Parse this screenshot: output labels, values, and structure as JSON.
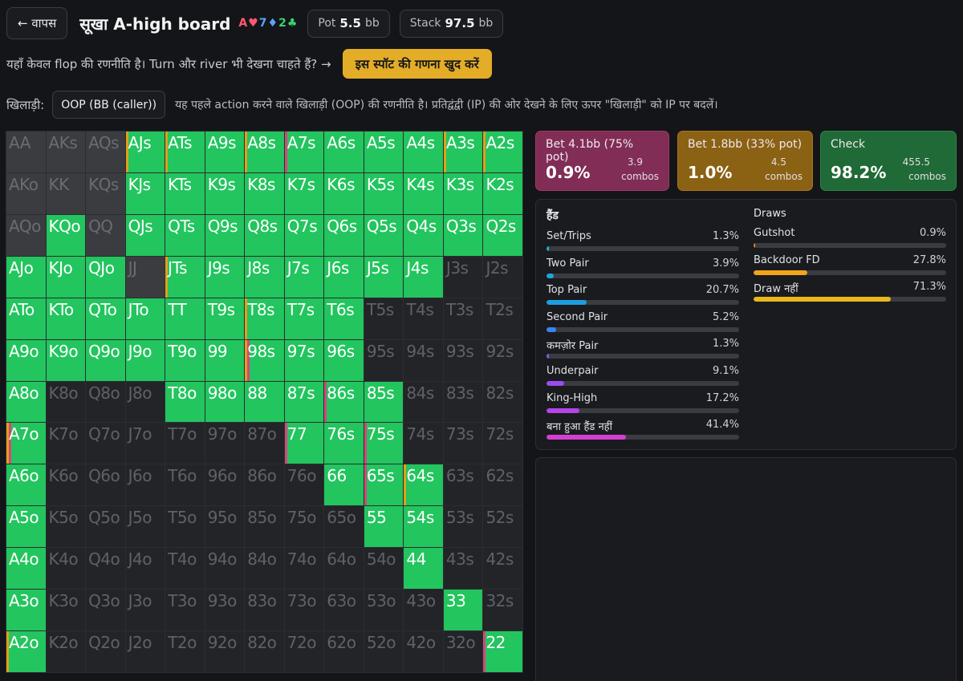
{
  "header": {
    "back_label": "← वापस",
    "title": "सूखा A-high board",
    "board_cards": [
      {
        "text": "A♥",
        "color": "#ff5a72"
      },
      {
        "text": "7♦",
        "color": "#5aa2ff"
      },
      {
        "text": "2♣",
        "color": "#39d16f"
      }
    ],
    "pot_label": "Pot",
    "pot_value": "5.5",
    "pot_unit": "bb",
    "stack_label": "Stack",
    "stack_value": "97.5",
    "stack_unit": "bb"
  },
  "notice": {
    "text": "यहाँ केवल flop की रणनीति है। Turn और river भी देखना चाहते हैं? →",
    "compute_button": "इस स्पॉट की गणना खुद करें"
  },
  "player": {
    "label": "खिलाड़ी:",
    "selected": "OOP (BB (caller))",
    "note": "यह पहले action करने वाले खिलाड़ी (OOP) की रणनीति है। प्रतिद्वंद्वी (IP) की ओर देखने के लिए ऊपर \"खिलाड़ी\" को IP पर बदलें।"
  },
  "colors": {
    "check": "#22c55e",
    "bet_small": "#e0a01a",
    "bet_large": "#d4467c"
  },
  "hand_grid": {
    "ranks": [
      "A",
      "K",
      "Q",
      "J",
      "T",
      "9",
      "8",
      "7",
      "6",
      "5",
      "4",
      "3",
      "2"
    ],
    "rows": [
      [
        "AA",
        "AKs",
        "AQs",
        "AJs",
        "ATs",
        "A9s",
        "A8s",
        "A7s",
        "A6s",
        "A5s",
        "A4s",
        "A3s",
        "A2s"
      ],
      [
        "AKo",
        "KK",
        "KQs",
        "KJs",
        "KTs",
        "K9s",
        "K8s",
        "K7s",
        "K6s",
        "K5s",
        "K4s",
        "K3s",
        "K2s"
      ],
      [
        "AQo",
        "KQo",
        "QQ",
        "QJs",
        "QTs",
        "Q9s",
        "Q8s",
        "Q7s",
        "Q6s",
        "Q5s",
        "Q4s",
        "Q3s",
        "Q2s"
      ],
      [
        "AJo",
        "KJo",
        "QJo",
        "JJ",
        "JTs",
        "J9s",
        "J8s",
        "J7s",
        "J6s",
        "J5s",
        "J4s",
        "J3s",
        "J2s"
      ],
      [
        "ATo",
        "KTo",
        "QTo",
        "JTo",
        "TT",
        "T9s",
        "T8s",
        "T7s",
        "T6s",
        "T5s",
        "T4s",
        "T3s",
        "T2s"
      ],
      [
        "A9o",
        "K9o",
        "Q9o",
        "J9o",
        "T9o",
        "99",
        "98s",
        "97s",
        "96s",
        "95s",
        "94s",
        "93s",
        "92s"
      ],
      [
        "A8o",
        "K8o",
        "Q8o",
        "J8o",
        "T8o",
        "98o",
        "88",
        "87s",
        "86s",
        "85s",
        "84s",
        "83s",
        "82s"
      ],
      [
        "A7o",
        "K7o",
        "Q7o",
        "J7o",
        "T7o",
        "97o",
        "87o",
        "77",
        "76s",
        "75s",
        "74s",
        "73s",
        "72s"
      ],
      [
        "A6o",
        "K6o",
        "Q6o",
        "J6o",
        "T6o",
        "96o",
        "86o",
        "76o",
        "66",
        "65s",
        "64s",
        "63s",
        "62s"
      ],
      [
        "A5o",
        "K5o",
        "Q5o",
        "J5o",
        "T5o",
        "95o",
        "85o",
        "75o",
        "65o",
        "55",
        "54s",
        "53s",
        "52s"
      ],
      [
        "A4o",
        "K4o",
        "Q4o",
        "J4o",
        "T4o",
        "94o",
        "84o",
        "74o",
        "64o",
        "54o",
        "44",
        "43s",
        "42s"
      ],
      [
        "A3o",
        "K3o",
        "Q3o",
        "J3o",
        "T3o",
        "93o",
        "83o",
        "73o",
        "63o",
        "53o",
        "43o",
        "33",
        "32s"
      ],
      [
        "A2o",
        "K2o",
        "Q2o",
        "J2o",
        "T2o",
        "92o",
        "82o",
        "72o",
        "62o",
        "52o",
        "42o",
        "32o",
        "22"
      ]
    ],
    "played": [
      [
        "AJs",
        0.06,
        0.94,
        0
      ],
      [
        "ATs",
        0.03,
        0.97,
        0
      ],
      [
        "A9s",
        0,
        1,
        0
      ],
      [
        "A8s",
        0.03,
        0.97,
        0
      ],
      [
        "A7s",
        0,
        0.94,
        0.06
      ],
      [
        "A6s",
        0,
        1,
        0
      ],
      [
        "A5s",
        0,
        1,
        0
      ],
      [
        "A4s",
        0,
        1,
        0
      ],
      [
        "A3s",
        0.03,
        0.97,
        0
      ],
      [
        "A2s",
        0.06,
        0.94,
        0
      ],
      [
        "KJs",
        0,
        1,
        0
      ],
      [
        "KTs",
        0,
        1,
        0
      ],
      [
        "K9s",
        0,
        1,
        0
      ],
      [
        "K8s",
        0,
        1,
        0
      ],
      [
        "K7s",
        0,
        1,
        0
      ],
      [
        "K6s",
        0,
        1,
        0
      ],
      [
        "K5s",
        0,
        1,
        0
      ],
      [
        "K4s",
        0,
        1,
        0
      ],
      [
        "K3s",
        0,
        1,
        0
      ],
      [
        "K2s",
        0,
        1,
        0
      ],
      [
        "KQo",
        0,
        1,
        0
      ],
      [
        "QJs",
        0,
        1,
        0
      ],
      [
        "QTs",
        0,
        1,
        0
      ],
      [
        "Q9s",
        0,
        1,
        0
      ],
      [
        "Q8s",
        0,
        1,
        0
      ],
      [
        "Q7s",
        0,
        1,
        0
      ],
      [
        "Q6s",
        0,
        1,
        0
      ],
      [
        "Q5s",
        0,
        1,
        0
      ],
      [
        "Q4s",
        0,
        1,
        0
      ],
      [
        "Q3s",
        0,
        1,
        0
      ],
      [
        "Q2s",
        0,
        1,
        0
      ],
      [
        "AJo",
        0,
        1,
        0
      ],
      [
        "KJo",
        0,
        1,
        0
      ],
      [
        "QJo",
        0,
        1,
        0
      ],
      [
        "JTs",
        0.06,
        0.94,
        0
      ],
      [
        "J9s",
        0,
        1,
        0
      ],
      [
        "J8s",
        0,
        1,
        0
      ],
      [
        "J7s",
        0,
        1,
        0
      ],
      [
        "J6s",
        0,
        1,
        0
      ],
      [
        "J5s",
        0,
        1,
        0
      ],
      [
        "J4s",
        0,
        1,
        0
      ],
      [
        "ATo",
        0,
        1,
        0
      ],
      [
        "KTo",
        0,
        1,
        0
      ],
      [
        "QTo",
        0,
        1,
        0
      ],
      [
        "JTo",
        0,
        1,
        0
      ],
      [
        "TT",
        0,
        1,
        0
      ],
      [
        "T9s",
        0,
        1,
        0
      ],
      [
        "T8s",
        0.06,
        0.94,
        0
      ],
      [
        "T7s",
        0,
        1,
        0
      ],
      [
        "T6s",
        0,
        1,
        0
      ],
      [
        "A9o",
        0,
        1,
        0
      ],
      [
        "K9o",
        0,
        1,
        0
      ],
      [
        "Q9o",
        0,
        1,
        0
      ],
      [
        "J9o",
        0,
        1,
        0
      ],
      [
        "T9o",
        0,
        1,
        0
      ],
      [
        "99",
        0,
        1,
        0
      ],
      [
        "98s",
        0.06,
        0.88,
        0.06
      ],
      [
        "97s",
        0,
        1,
        0
      ],
      [
        "96s",
        0,
        1,
        0
      ],
      [
        "A8o",
        0,
        1,
        0
      ],
      [
        "T8o",
        0,
        1,
        0
      ],
      [
        "98o",
        0,
        1,
        0
      ],
      [
        "88",
        0,
        1,
        0
      ],
      [
        "87s",
        0,
        1,
        0
      ],
      [
        "86s",
        0,
        0.94,
        0.06
      ],
      [
        "85s",
        0,
        1,
        0
      ],
      [
        "A7o",
        0.06,
        0.88,
        0.06
      ],
      [
        "77",
        0,
        0.94,
        0.06
      ],
      [
        "76s",
        0,
        1,
        0
      ],
      [
        "75s",
        0,
        0.94,
        0.06
      ],
      [
        "A6o",
        0,
        1,
        0
      ],
      [
        "66",
        0,
        1,
        0
      ],
      [
        "65s",
        0,
        0.94,
        0.06
      ],
      [
        "64s",
        0.06,
        0.94,
        0
      ],
      [
        "A5o",
        0,
        1,
        0
      ],
      [
        "55",
        0,
        1,
        0
      ],
      [
        "54s",
        0,
        1,
        0
      ],
      [
        "A4o",
        0,
        1,
        0
      ],
      [
        "44",
        0,
        1,
        0
      ],
      [
        "A3o",
        0,
        1,
        0
      ],
      [
        "33",
        0,
        1,
        0
      ],
      [
        "A2o",
        0.06,
        0.94,
        0
      ],
      [
        "22",
        0,
        0.88,
        0.12
      ]
    ],
    "board_blocked": [
      "AA",
      "AKs",
      "AQs",
      "AKo",
      "KK",
      "KQs",
      "AQo",
      "QQ",
      "JJ"
    ]
  },
  "actions": [
    {
      "name": "Bet 4.1bb (75% pot)",
      "pct": "0.9%",
      "combos": "3.9",
      "combos_label": "combos"
    },
    {
      "name": "Bet 1.8bb (33% pot)",
      "pct": "1.0%",
      "combos": "4.5",
      "combos_label": "combos"
    },
    {
      "name": "Check",
      "pct": "98.2%",
      "combos": "455.5",
      "combos_label": "combos"
    }
  ],
  "hands": {
    "title": "हैंड",
    "items": [
      {
        "name": "Set/Trips",
        "pct": "1.3%",
        "value": 1.3,
        "color": "#19b4c8"
      },
      {
        "name": "Two Pair",
        "pct": "3.9%",
        "value": 3.9,
        "color": "#1aa7d6"
      },
      {
        "name": "Top Pair",
        "pct": "20.7%",
        "value": 20.7,
        "color": "#1e9ee0"
      },
      {
        "name": "Second Pair",
        "pct": "5.2%",
        "value": 5.2,
        "color": "#3b82f6"
      },
      {
        "name": "कमज़ोर Pair",
        "pct": "1.3%",
        "value": 1.3,
        "color": "#7c5cf0"
      },
      {
        "name": "Underpair",
        "pct": "9.1%",
        "value": 9.1,
        "color": "#9a4df0"
      },
      {
        "name": "King-High",
        "pct": "17.2%",
        "value": 17.2,
        "color": "#b444e6"
      },
      {
        "name": "बना हुआ हैंड नहीं",
        "pct": "41.4%",
        "value": 41.4,
        "color": "#d43fd2"
      }
    ]
  },
  "draws": {
    "title": "Draws",
    "items": [
      {
        "name": "Gutshot",
        "pct": "0.9%",
        "value": 0.9,
        "color": "#f08a1a"
      },
      {
        "name": "Backdoor FD",
        "pct": "27.8%",
        "value": 27.8,
        "color": "#f0a51a"
      },
      {
        "name": "Draw नहीं",
        "pct": "71.3%",
        "value": 71.3,
        "color": "#eab71a"
      }
    ]
  }
}
